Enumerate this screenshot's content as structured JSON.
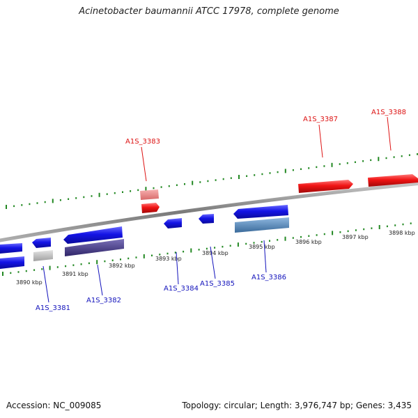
{
  "title": "Acinetobacter baumannii ATCC 17978, complete genome",
  "footer": {
    "accession": "Accession: NC_009085",
    "summary": "Topology: circular; Length: 3,976,747 bp; Genes: 3,435"
  },
  "colors": {
    "forward_strand": "#ee1111",
    "reverse_strand": "#1111dd",
    "forward_label": "#dd1111",
    "reverse_label": "#1111bb",
    "tick": "#228822",
    "backbone": "#8a8a8a"
  },
  "scale_labels": [
    "3890 kbp",
    "3891 kbp",
    "3892 kbp",
    "3893 kbp",
    "3894 kbp",
    "3895 kbp",
    "3896 kbp",
    "3897 kbp",
    "3898 kbp"
  ],
  "genes": [
    {
      "name": "A1S_3381",
      "strand": "reverse"
    },
    {
      "name": "A1S_3382",
      "strand": "reverse"
    },
    {
      "name": "A1S_3383",
      "strand": "forward"
    },
    {
      "name": "A1S_3384",
      "strand": "reverse"
    },
    {
      "name": "A1S_3385",
      "strand": "reverse"
    },
    {
      "name": "A1S_3386",
      "strand": "reverse"
    },
    {
      "name": "A1S_3387",
      "strand": "forward"
    },
    {
      "name": "A1S_3388",
      "strand": "forward"
    }
  ]
}
